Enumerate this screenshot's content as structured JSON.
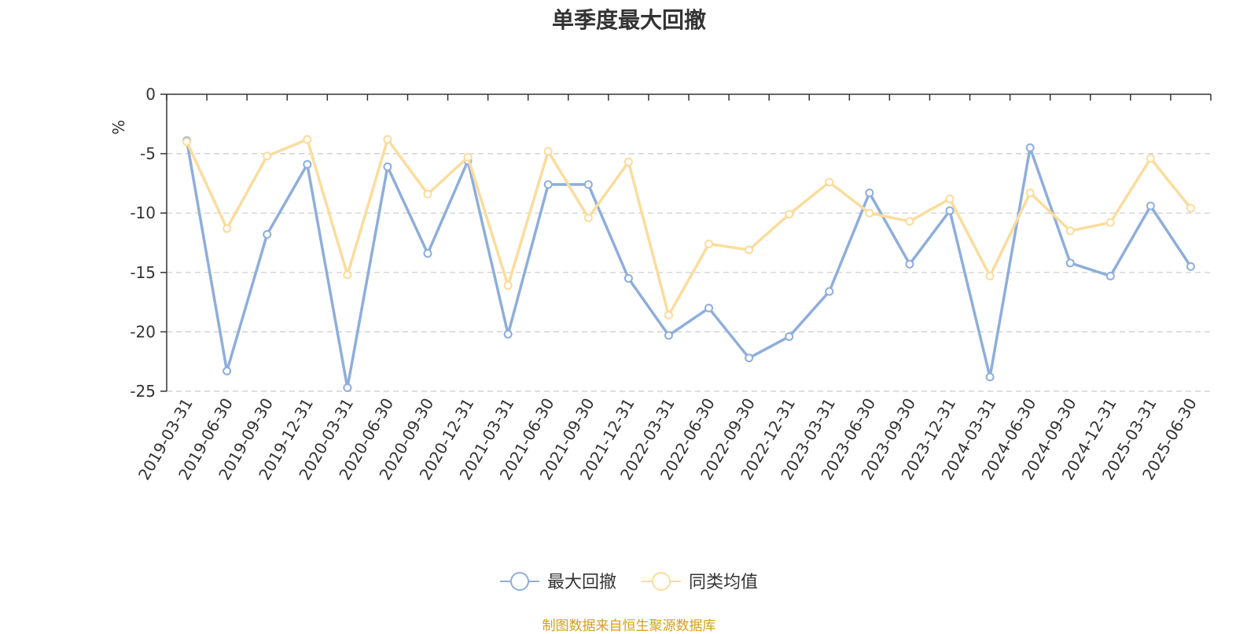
{
  "chart_data": {
    "type": "line",
    "title": "单季度最大回撤",
    "ylabel": "%",
    "ylim": [
      -25,
      0
    ],
    "yticks": [
      0,
      -5,
      -10,
      -15,
      -20,
      -25
    ],
    "grid": true,
    "legend_position": "bottom-center",
    "categories": [
      "2019-03-31",
      "2019-06-30",
      "2019-09-30",
      "2019-12-31",
      "2020-03-31",
      "2020-06-30",
      "2020-09-30",
      "2020-12-31",
      "2021-03-31",
      "2021-06-30",
      "2021-09-30",
      "2021-12-31",
      "2022-03-31",
      "2022-06-30",
      "2022-09-30",
      "2022-12-31",
      "2023-03-31",
      "2023-06-30",
      "2023-09-30",
      "2023-12-31",
      "2024-03-31",
      "2024-06-30",
      "2024-09-30",
      "2024-12-31",
      "2025-03-31",
      "2025-06-30"
    ],
    "series": [
      {
        "name": "最大回撤",
        "color": "#8eaedb",
        "values": [
          -3.9,
          -23.3,
          -11.8,
          -5.9,
          -24.7,
          -6.1,
          -13.4,
          -5.6,
          -20.2,
          -7.6,
          -7.6,
          -15.5,
          -20.3,
          -18.0,
          -22.2,
          -20.4,
          -16.6,
          -8.3,
          -14.3,
          -9.8,
          -23.8,
          -4.5,
          -14.2,
          -15.3,
          -9.4,
          -14.5
        ]
      },
      {
        "name": "同类均值",
        "color": "#fbdc9c",
        "values": [
          -4.0,
          -11.3,
          -5.2,
          -3.8,
          -15.2,
          -3.8,
          -8.4,
          -5.3,
          -16.1,
          -4.8,
          -10.4,
          -5.7,
          -18.6,
          -12.6,
          -13.1,
          -10.1,
          -7.4,
          -10.0,
          -10.7,
          -8.8,
          -15.3,
          -8.3,
          -11.5,
          -10.8,
          -5.4,
          -9.6
        ]
      }
    ]
  },
  "source_note": "制图数据来自恒生聚源数据库"
}
